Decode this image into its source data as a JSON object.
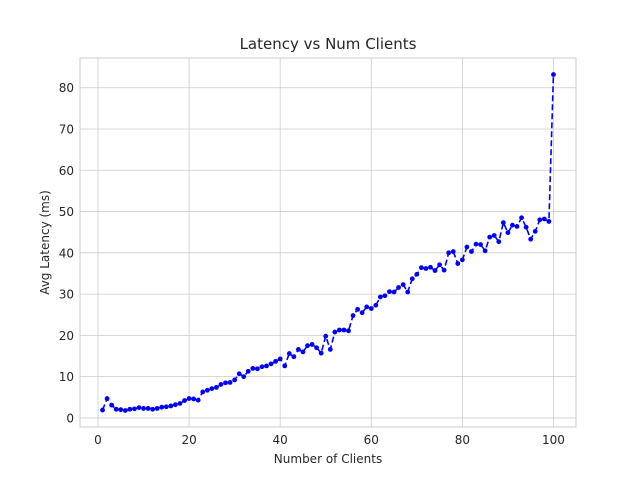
{
  "chart_data": {
    "type": "line",
    "title": "Latency vs Num Clients",
    "xlabel": "Number of Clients",
    "ylabel": "Avg Latency (ms)",
    "xlim": [
      -3.95,
      104.95
    ],
    "ylim": [
      -2.2,
      87.2
    ],
    "xticks": [
      0,
      20,
      40,
      60,
      80,
      100
    ],
    "yticks": [
      0,
      10,
      20,
      30,
      40,
      50,
      60,
      70,
      80
    ],
    "grid": true,
    "legend": "none",
    "series": [
      {
        "color": "#0000ff",
        "line_style": "dashed",
        "marker": "circle",
        "x": [
          1,
          2,
          3,
          4,
          5,
          6,
          7,
          8,
          9,
          10,
          11,
          12,
          13,
          14,
          15,
          16,
          17,
          18,
          19,
          20,
          21,
          22,
          23,
          24,
          25,
          26,
          27,
          28,
          29,
          30,
          31,
          32,
          33,
          34,
          35,
          36,
          37,
          38,
          39,
          40,
          41,
          42,
          43,
          44,
          45,
          46,
          47,
          48,
          49,
          50,
          51,
          52,
          53,
          54,
          55,
          56,
          57,
          58,
          59,
          60,
          61,
          62,
          63,
          64,
          65,
          66,
          67,
          68,
          69,
          70,
          71,
          72,
          73,
          74,
          75,
          76,
          77,
          78,
          79,
          80,
          81,
          82,
          83,
          84,
          85,
          86,
          87,
          88,
          89,
          90,
          91,
          92,
          93,
          94,
          95,
          96,
          97,
          98,
          99,
          100
        ],
        "y": [
          1.9,
          4.7,
          3.1,
          2.1,
          2.0,
          1.8,
          2.1,
          2.2,
          2.5,
          2.3,
          2.3,
          2.1,
          2.3,
          2.6,
          2.7,
          2.9,
          3.2,
          3.5,
          4.2,
          4.7,
          4.6,
          4.3,
          6.3,
          6.7,
          7.1,
          7.4,
          8.1,
          8.5,
          8.6,
          9.2,
          10.7,
          10.0,
          11.3,
          12.0,
          11.9,
          12.4,
          12.6,
          13.1,
          13.7,
          14.3,
          12.6,
          15.6,
          14.8,
          16.6,
          16.0,
          17.5,
          17.8,
          17.0,
          15.7,
          19.8,
          16.6,
          20.8,
          21.3,
          21.3,
          21.1,
          24.8,
          26.3,
          25.5,
          26.9,
          26.5,
          27.3,
          29.3,
          29.6,
          30.6,
          30.5,
          31.6,
          32.3,
          30.5,
          33.7,
          34.8,
          36.4,
          36.2,
          36.5,
          35.7,
          37.1,
          35.8,
          40.0,
          40.3,
          37.4,
          38.3,
          41.4,
          40.3,
          42.1,
          42.0,
          40.5,
          43.8,
          44.2,
          42.7,
          47.3,
          44.9,
          46.7,
          46.4,
          48.5,
          46.2,
          43.3,
          45.2,
          48.0,
          48.2,
          47.6,
          83.2
        ]
      }
    ]
  }
}
